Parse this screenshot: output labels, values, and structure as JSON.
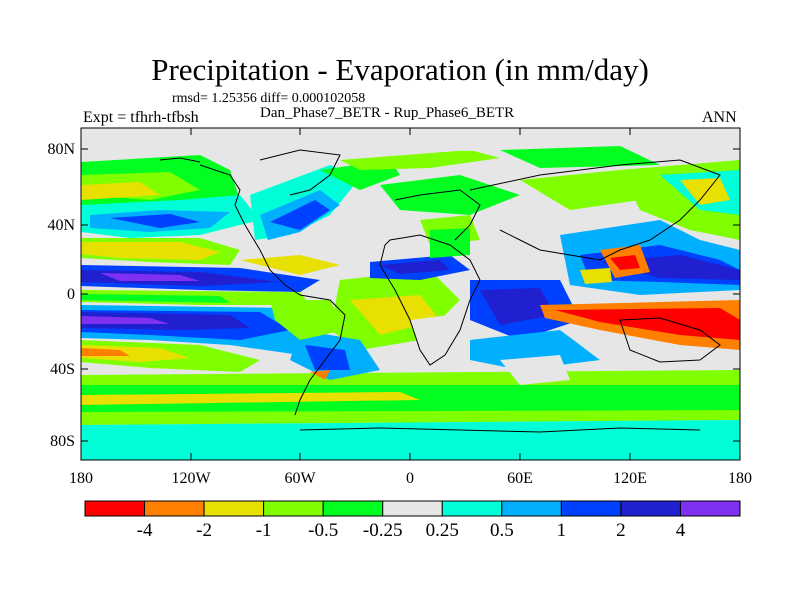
{
  "title": "Precipitation - Evaporation (in mm/day)",
  "stats": "rmsd= 1.25356 diff= 0.000102058",
  "experiment": "Expt = tfhrh-tfbsh",
  "case": "Dan_Phase7_BETR - Rup_Phase6_BETR",
  "season": "ANN",
  "lat_ticks": [
    "80N",
    "40N",
    "0",
    "40S",
    "80S"
  ],
  "lon_ticks": [
    "180",
    "120W",
    "60W",
    "0",
    "60E",
    "120E",
    "180"
  ],
  "colorbar": {
    "labels": [
      "-4",
      "-2",
      "-1",
      "-0.5",
      "-0.25",
      "0.25",
      "0.5",
      "1",
      "2",
      "4"
    ],
    "colors": [
      "#ff0000",
      "#ff8000",
      "#e8e000",
      "#80ff00",
      "#00ff20",
      "#e6e6e6",
      "#00ffd8",
      "#00b0ff",
      "#0040ff",
      "#2020d0",
      "#8030f0"
    ]
  }
}
